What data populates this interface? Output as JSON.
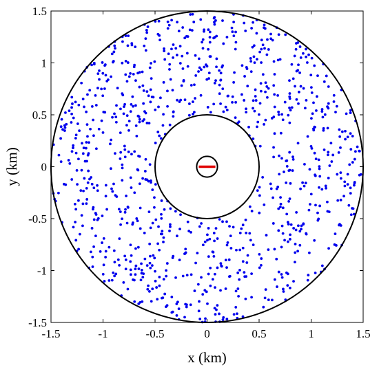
{
  "chart_data": {
    "type": "scatter",
    "title": "",
    "xlabel": "x (km)",
    "ylabel": "y (km)",
    "xlim": [
      -1.5,
      1.5
    ],
    "ylim": [
      -1.5,
      1.5
    ],
    "xticks": [
      "-1.5",
      "-1",
      "-0.5",
      "0",
      "0.5",
      "1",
      "1.5"
    ],
    "yticks": [
      "-1.5",
      "-1",
      "-0.5",
      "0",
      "0.5",
      "1",
      "1.5"
    ],
    "grid": false,
    "legend": "none",
    "circles": [
      {
        "name": "outer-boundary",
        "cx": 0,
        "cy": 0,
        "r": 1.5,
        "color": "#000000"
      },
      {
        "name": "exclusion-zone",
        "cx": 0,
        "cy": 0,
        "r": 0.5,
        "color": "#000000"
      },
      {
        "name": "center-zone",
        "cx": 0,
        "cy": 0,
        "r": 0.1,
        "color": "#000000"
      }
    ],
    "segment": {
      "x": [
        -0.08,
        0.08
      ],
      "y": [
        0,
        0
      ],
      "color": "#e00000"
    },
    "points": {
      "color": "#0000ee",
      "count": 1000,
      "r_min": 0.5,
      "r_max": 1.5,
      "distribution": "uniform random in annulus"
    }
  }
}
